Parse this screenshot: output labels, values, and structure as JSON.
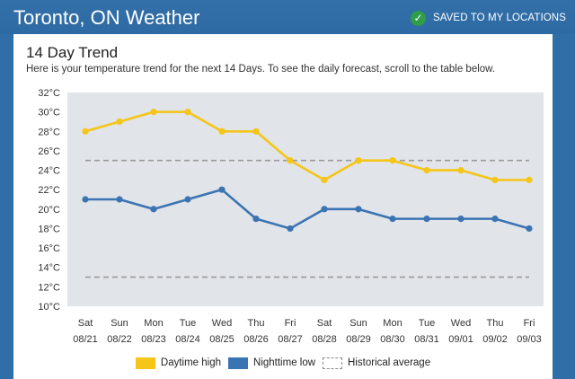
{
  "header": {
    "title": "Toronto, ON Weather",
    "saved_label": "SAVED TO MY LOCATIONS",
    "saved_icon": "check-icon"
  },
  "card": {
    "title": "14 Day Trend",
    "subtitle": "Here is your temperature trend for the next 14 Days. To see the daily forecast, scroll to the table below."
  },
  "colors": {
    "high": "#f5c518",
    "low": "#3b74b3",
    "historical": "#9a9a9a",
    "plot_bg": "#e1e4e8"
  },
  "chart_data": {
    "type": "line",
    "title": "14 Day Trend",
    "days": [
      "Sat",
      "Sun",
      "Mon",
      "Tue",
      "Wed",
      "Thu",
      "Fri",
      "Sat",
      "Sun",
      "Mon",
      "Tue",
      "Wed",
      "Thu",
      "Fri"
    ],
    "dates": [
      "08/21",
      "08/22",
      "08/23",
      "08/24",
      "08/25",
      "08/26",
      "08/27",
      "08/28",
      "08/29",
      "08/30",
      "08/31",
      "09/01",
      "09/02",
      "09/03"
    ],
    "series": [
      {
        "name": "Daytime high",
        "values": [
          28,
          29,
          30,
          30,
          28,
          28,
          25,
          23,
          25,
          25,
          24,
          24,
          23,
          23
        ]
      },
      {
        "name": "Nighttime low",
        "values": [
          21,
          21,
          20,
          21,
          22,
          19,
          18,
          20,
          20,
          19,
          19,
          19,
          19,
          18
        ]
      }
    ],
    "historical": {
      "name": "Historical average",
      "high": 25,
      "low": 13
    },
    "ylim": [
      10,
      32
    ],
    "y_ticks": [
      10,
      12,
      14,
      16,
      18,
      20,
      22,
      24,
      26,
      28,
      30,
      32
    ],
    "y_unit": "°C",
    "legend_position": "bottom"
  }
}
